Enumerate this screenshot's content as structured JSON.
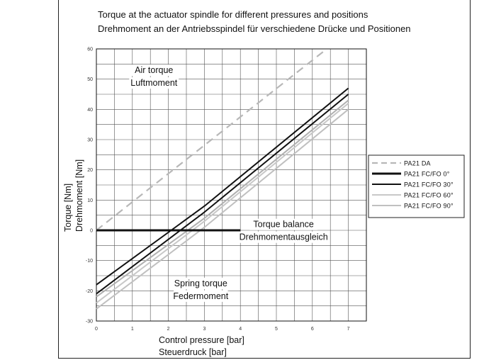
{
  "chart_data": {
    "type": "line",
    "title": "Torque at the actuator spindle for different pressures and positions",
    "subtitle": "Drehmoment an der Antriebsspindel für verschiedene Drücke und Positionen",
    "xlabel": "Control pressure [bar]",
    "xlabel2": "Steuerdruck [bar]",
    "ylabel": "Torque [Nm]",
    "ylabel2": "Drehmoment [Nm]",
    "xlim": [
      0,
      7.5
    ],
    "ylim": [
      -30,
      60
    ],
    "xticks": [
      0,
      1,
      2,
      3,
      4,
      5,
      6,
      7
    ],
    "yticks": [
      -30,
      -20,
      -10,
      0,
      10,
      20,
      30,
      40,
      50,
      60
    ],
    "grid": true,
    "legend_position": "right",
    "annotations": [
      {
        "lines": [
          "Air torque",
          "Luftmoment"
        ],
        "x": 1.6,
        "y": 52
      },
      {
        "lines": [
          "Torque balance",
          "Drehmomentausgleich"
        ],
        "x": 5.2,
        "y": 1
      },
      {
        "lines": [
          "Spring torque",
          "Federmoment"
        ],
        "x": 2.9,
        "y": -18.5
      }
    ],
    "series": [
      {
        "name": "PA21 DA",
        "style": "dashed",
        "color": "#b8b8b8",
        "width": 2.2,
        "x": [
          0,
          6.4
        ],
        "y": [
          0,
          60
        ]
      },
      {
        "name": "PA21 FC/FO  0°",
        "style": "solid",
        "color": "#111111",
        "width": 3,
        "x": [
          0,
          4.0
        ],
        "y": [
          0,
          0
        ]
      },
      {
        "name": "PA21 FC/FO  30°",
        "style": "solid",
        "color": "#111111",
        "width": 2,
        "x": [
          0,
          3.0,
          7.0
        ],
        "y": [
          -18,
          8,
          47
        ]
      },
      {
        "name": "PA21 FC/FO  60°",
        "style": "solid",
        "color": "#c8c8c8",
        "width": 2,
        "x": [
          0,
          3.0,
          7.0
        ],
        "y": [
          -24,
          3,
          42
        ]
      },
      {
        "name": "PA21 FC/FO  90°",
        "style": "solid",
        "color": "#c0c0c0",
        "width": 2,
        "x": [
          0,
          3.0,
          7.0
        ],
        "y": [
          -26,
          1,
          40
        ]
      }
    ],
    "extra_lines": [
      {
        "color": "#111111",
        "width": 2,
        "x": [
          0,
          3.0,
          7.0
        ],
        "y": [
          -21,
          6,
          45
        ]
      },
      {
        "color": "#b0b0b0",
        "width": 2,
        "x": [
          0,
          3.0,
          7.0
        ],
        "y": [
          -22,
          4,
          43
        ]
      }
    ]
  }
}
